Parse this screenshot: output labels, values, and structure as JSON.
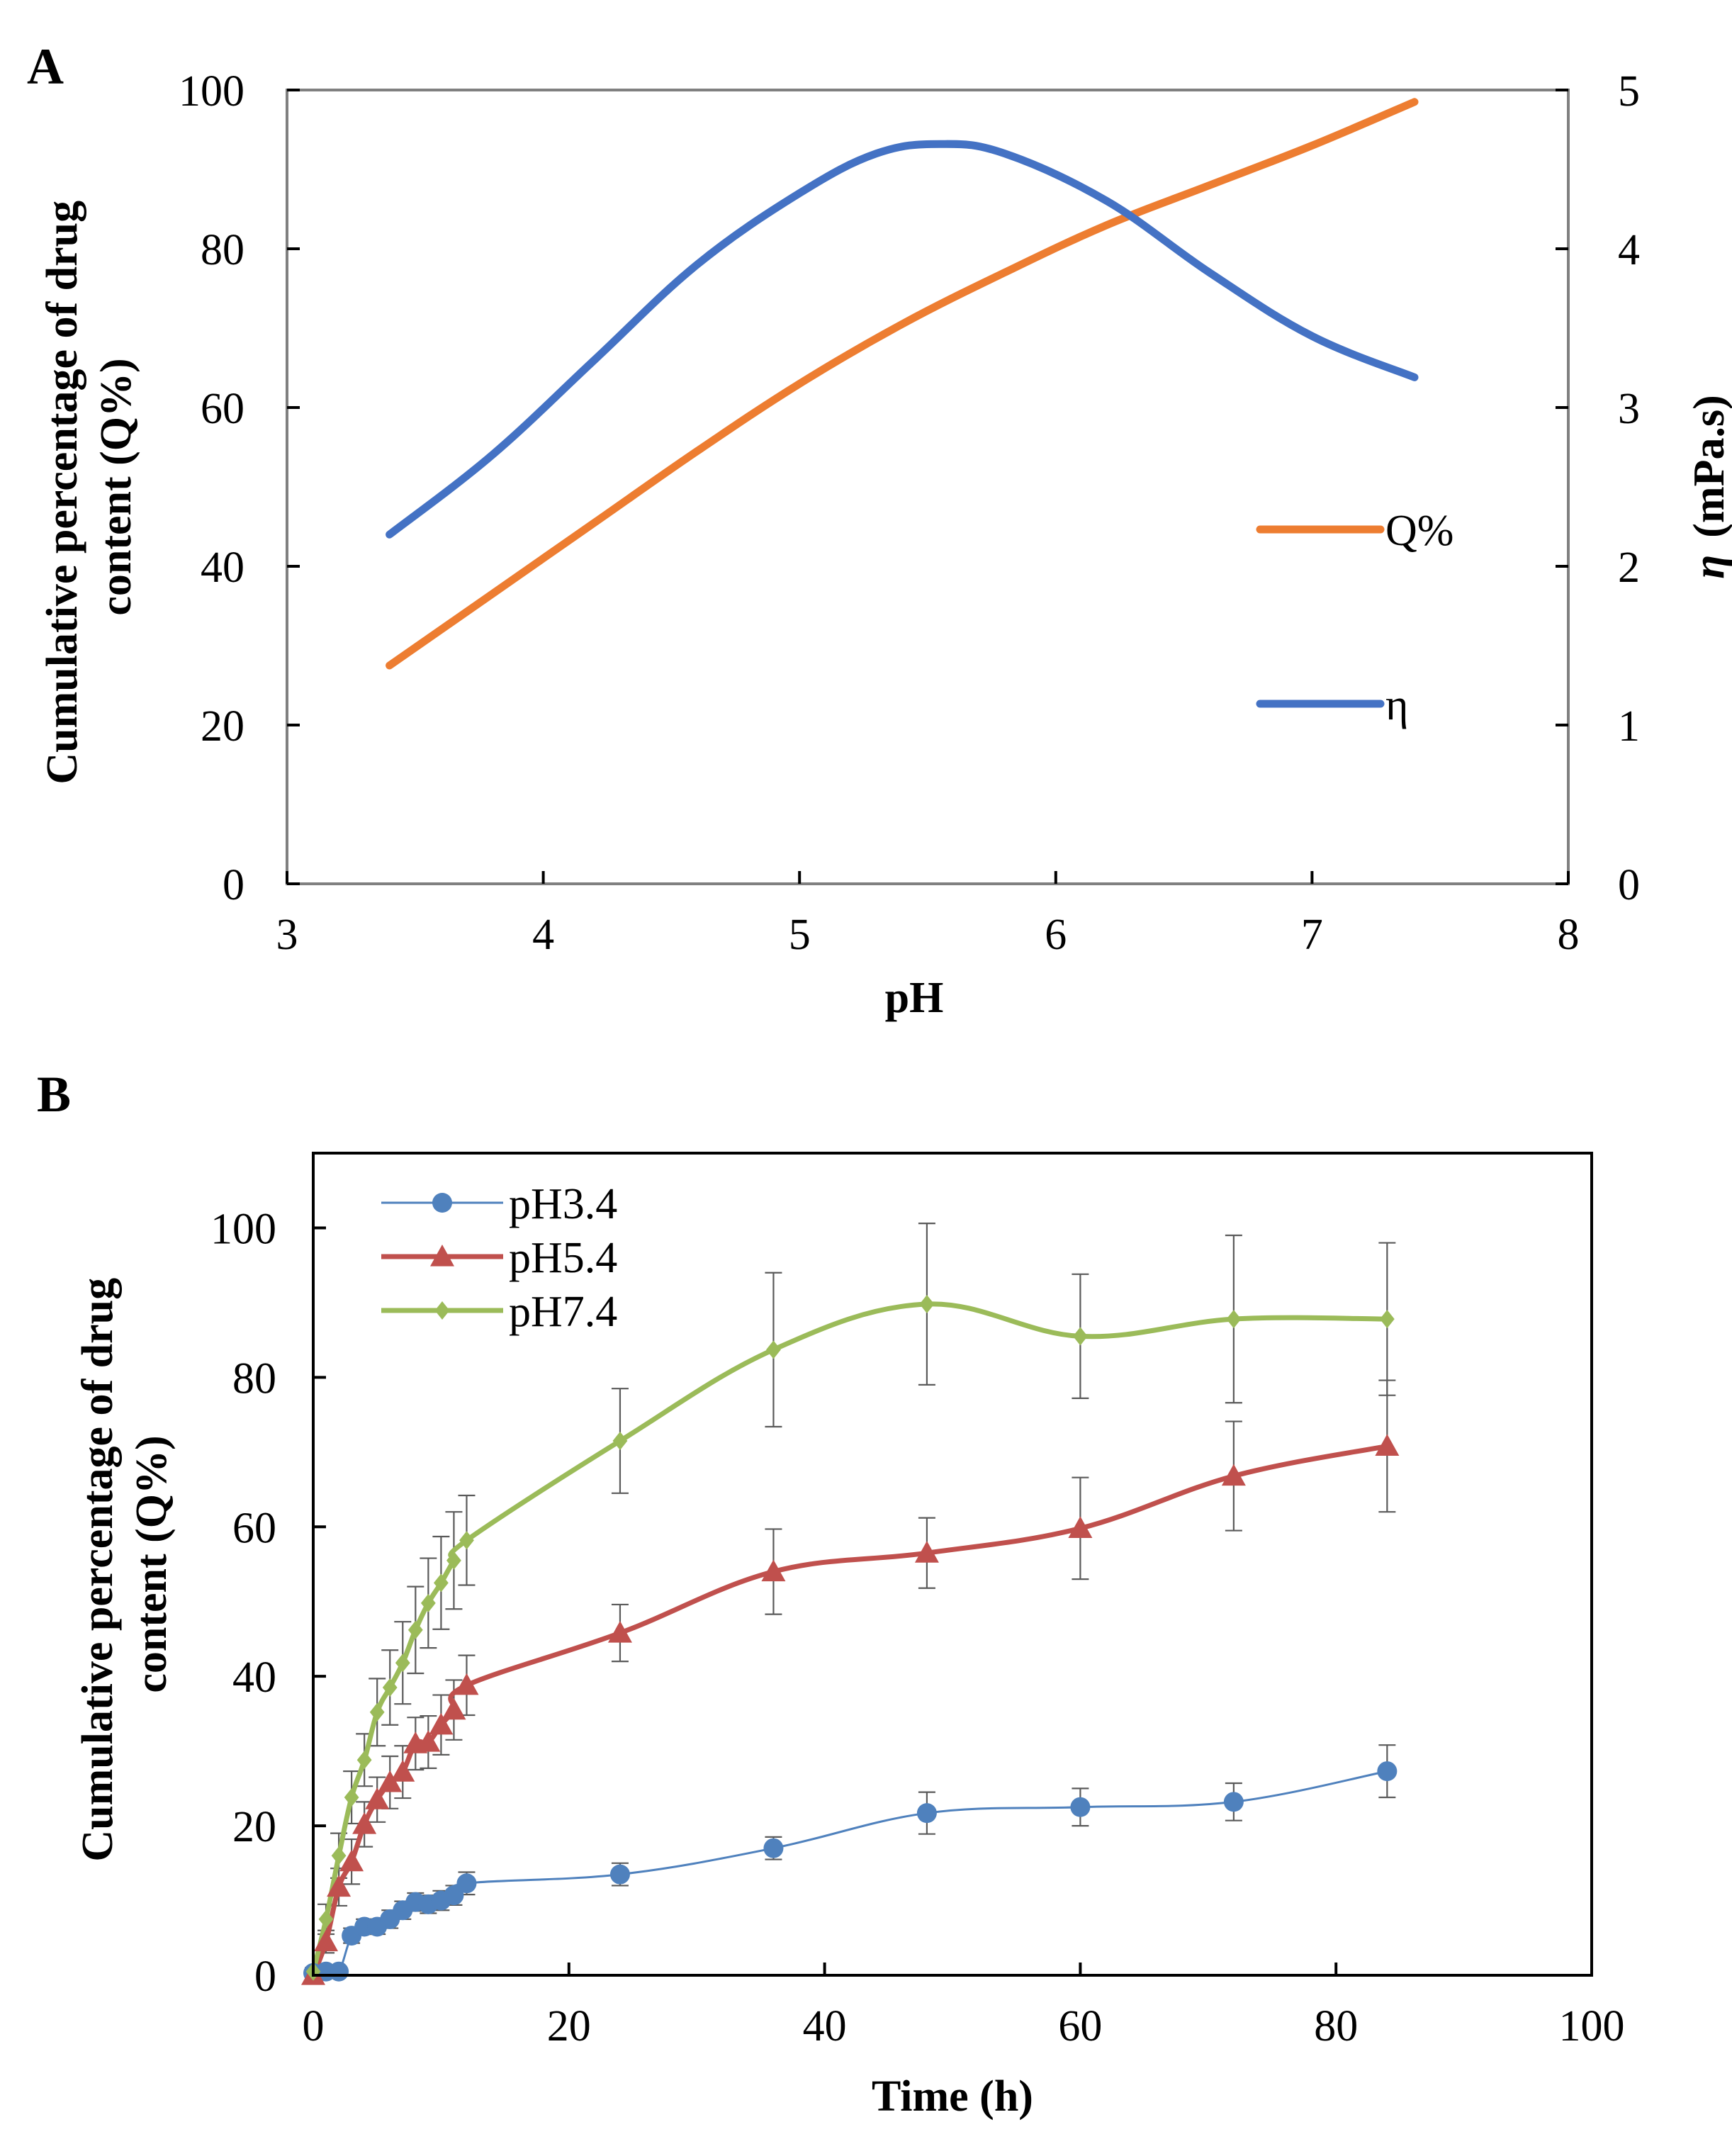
{
  "chart_data": [
    {
      "panel": "A",
      "type": "line",
      "xlabel": "pH",
      "ylabel": "Cumulative percentage of drug content (Q%)",
      "ylabel_lines": [
        "Cumulative percentage of drug",
        "content (Q%)"
      ],
      "y2label_symbol": "η",
      "y2label_unit": "(mPa.s)",
      "xlim": [
        3,
        8
      ],
      "ylim": [
        0,
        100
      ],
      "y2lim": [
        0,
        5
      ],
      "xticks": [
        3,
        4,
        5,
        6,
        7,
        8
      ],
      "yticks": [
        0,
        20,
        40,
        60,
        80,
        100
      ],
      "y2ticks": [
        0,
        1,
        2,
        3,
        4,
        5
      ],
      "grid": false,
      "legend_position": "right",
      "series": [
        {
          "name": "Q%",
          "axis": "left",
          "color": "#ED7D31",
          "x": [
            3.4,
            3.8,
            4.2,
            4.6,
            5.0,
            5.4,
            5.8,
            6.2,
            6.6,
            7.0,
            7.4
          ],
          "y": [
            27.5,
            36.5,
            45.5,
            54.5,
            63.0,
            70.5,
            77.0,
            83.0,
            88.0,
            93.0,
            98.5
          ]
        },
        {
          "name": "η",
          "axis": "right",
          "color": "#4472C4",
          "x": [
            3.4,
            3.8,
            4.2,
            4.6,
            5.0,
            5.3,
            5.55,
            5.8,
            6.2,
            6.6,
            7.0,
            7.4
          ],
          "y": [
            2.2,
            2.7,
            3.3,
            3.9,
            4.35,
            4.6,
            4.66,
            4.6,
            4.3,
            3.85,
            3.45,
            3.19
          ]
        }
      ]
    },
    {
      "panel": "B",
      "type": "line",
      "xlabel": "Time (h)",
      "ylabel": "Cumulative percentage of drug content (Q%)",
      "ylabel_lines": [
        "Cumulative percentage of drug",
        "content (Q%)"
      ],
      "xlim": [
        0,
        100
      ],
      "ylim": [
        0,
        110
      ],
      "xticks": [
        0,
        20,
        40,
        60,
        80,
        100
      ],
      "yticks": [
        0,
        20,
        40,
        60,
        80,
        100
      ],
      "grid": false,
      "legend_position": "top-left",
      "series": [
        {
          "name": "pH3.4",
          "color": "#4F81BD",
          "marker": "circle",
          "x": [
            0,
            1,
            2,
            3,
            4,
            5,
            6,
            7,
            8,
            9,
            10,
            11,
            12,
            24,
            36,
            48,
            60,
            72,
            84
          ],
          "y": [
            0.3,
            0.5,
            0.5,
            5.3,
            6.5,
            6.5,
            7.5,
            8.7,
            9.8,
            9.5,
            10.0,
            10.7,
            12.3,
            13.5,
            17.0,
            21.7,
            22.5,
            23.2,
            27.3
          ],
          "err": [
            0.3,
            0.3,
            0.3,
            1.0,
            1.0,
            1.0,
            1.2,
            1.2,
            1.2,
            1.2,
            1.3,
            1.3,
            1.5,
            1.5,
            1.5,
            2.8,
            2.5,
            2.5,
            3.5
          ]
        },
        {
          "name": "pH5.4",
          "color": "#C0504D",
          "marker": "triangle",
          "x": [
            0,
            1,
            2,
            3,
            4,
            5,
            6,
            7,
            8,
            9,
            10,
            11,
            12,
            24,
            36,
            48,
            60,
            72,
            84
          ],
          "y": [
            0,
            4.5,
            11.8,
            15.2,
            20.2,
            23.5,
            25.8,
            27.2,
            31.0,
            31.2,
            33.5,
            35.5,
            38.8,
            45.8,
            54.0,
            56.5,
            59.8,
            66.8,
            70.8
          ],
          "err": [
            0.5,
            1.5,
            2.5,
            3.0,
            3.0,
            3.0,
            3.5,
            3.5,
            3.5,
            3.5,
            4.0,
            4.0,
            4.0,
            3.8,
            5.7,
            4.7,
            6.8,
            7.3,
            8.8
          ]
        },
        {
          "name": "pH7.4",
          "color": "#9BBB59",
          "marker": "diamond",
          "x": [
            0,
            1,
            2,
            3,
            4,
            5,
            6,
            7,
            8,
            9,
            10,
            11,
            12,
            24,
            36,
            48,
            60,
            72,
            84
          ],
          "y": [
            0.5,
            7.5,
            16.0,
            23.8,
            28.8,
            35.2,
            38.5,
            41.8,
            46.2,
            49.8,
            52.5,
            55.5,
            58.2,
            71.5,
            83.7,
            89.8,
            85.5,
            87.8,
            87.8
          ],
          "err": [
            0.5,
            2.0,
            3.0,
            3.5,
            3.5,
            4.5,
            5.0,
            5.5,
            5.8,
            6.0,
            6.2,
            6.5,
            6.0,
            7.0,
            10.3,
            10.8,
            8.3,
            11.2,
            10.2
          ]
        }
      ]
    }
  ]
}
